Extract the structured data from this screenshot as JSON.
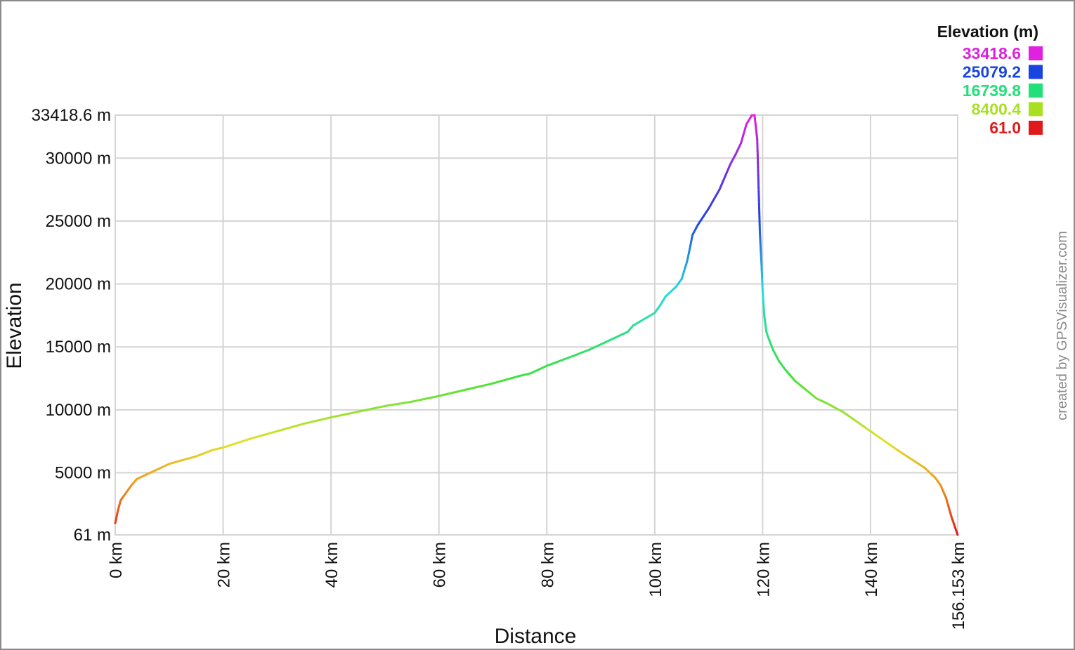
{
  "chart_data": {
    "type": "line",
    "title": "",
    "xlabel": "Distance",
    "ylabel": "Elevation",
    "x_unit": "km",
    "y_unit": "m",
    "xlim": [
      0,
      156.153
    ],
    "ylim": [
      61,
      33418.6
    ],
    "x_ticks": [
      {
        "value": 0,
        "label": "0 km"
      },
      {
        "value": 20,
        "label": "20 km"
      },
      {
        "value": 40,
        "label": "40 km"
      },
      {
        "value": 60,
        "label": "60 km"
      },
      {
        "value": 80,
        "label": "80 km"
      },
      {
        "value": 100,
        "label": "100 km"
      },
      {
        "value": 120,
        "label": "120 km"
      },
      {
        "value": 140,
        "label": "140 km"
      },
      {
        "value": 156.153,
        "label": "156.153 km"
      }
    ],
    "y_ticks": [
      {
        "value": 61,
        "label": "61 m"
      },
      {
        "value": 5000,
        "label": "5000 m"
      },
      {
        "value": 10000,
        "label": "10000 m"
      },
      {
        "value": 15000,
        "label": "15000 m"
      },
      {
        "value": 20000,
        "label": "20000 m"
      },
      {
        "value": 25000,
        "label": "25000 m"
      },
      {
        "value": 30000,
        "label": "30000 m"
      },
      {
        "value": 33418.6,
        "label": "33418.6 m"
      }
    ],
    "grid": true,
    "legend": {
      "title": "Elevation (m)",
      "placement": "top-right",
      "entries": [
        {
          "label": "33418.6",
          "color": "#e021e0"
        },
        {
          "label": "25079.2",
          "color": "#1a44e0"
        },
        {
          "label": "16739.8",
          "color": "#21e07a"
        },
        {
          "label": "8400.4",
          "color": "#a8e021"
        },
        {
          "label": "61.0",
          "color": "#e01a1a"
        }
      ]
    },
    "series": [
      {
        "color_scale": "elevation",
        "x": [
          0,
          0.5,
          1,
          2,
          3,
          4,
          6,
          8,
          10,
          12,
          15,
          18,
          20,
          25,
          30,
          35,
          40,
          45,
          50,
          55,
          60,
          65,
          70,
          75,
          77,
          80,
          85,
          88,
          90,
          95,
          96,
          100,
          101,
          102,
          103,
          104,
          105,
          106,
          106.5,
          107,
          108,
          110,
          112,
          114,
          115,
          116,
          117,
          118,
          118.5,
          119,
          119.3,
          119.5,
          119.8,
          120,
          120.3,
          120.7,
          121,
          122,
          123,
          124,
          125,
          126,
          128,
          130,
          132,
          135,
          138,
          140,
          145,
          150,
          152,
          153,
          154,
          155,
          156.153
        ],
        "y": [
          1000,
          2000,
          2800,
          3400,
          4000,
          4500,
          4900,
          5300,
          5700,
          5950,
          6300,
          6800,
          7000,
          7700,
          8300,
          8900,
          9400,
          9850,
          10300,
          10650,
          11100,
          11600,
          12100,
          12700,
          12900,
          13500,
          14300,
          14800,
          15200,
          16200,
          16700,
          17700,
          18300,
          19000,
          19400,
          19800,
          20400,
          21800,
          22800,
          23900,
          24700,
          26000,
          27500,
          29500,
          30300,
          31200,
          32700,
          33400,
          33418.6,
          31500,
          27000,
          24000,
          21500,
          19500,
          17500,
          16200,
          15800,
          14700,
          13900,
          13300,
          12800,
          12300,
          11600,
          10900,
          10500,
          9800,
          8900,
          8300,
          6800,
          5400,
          4600,
          4000,
          3000,
          1500,
          61
        ]
      }
    ],
    "credit": "created by GPSVisualizer.com"
  }
}
